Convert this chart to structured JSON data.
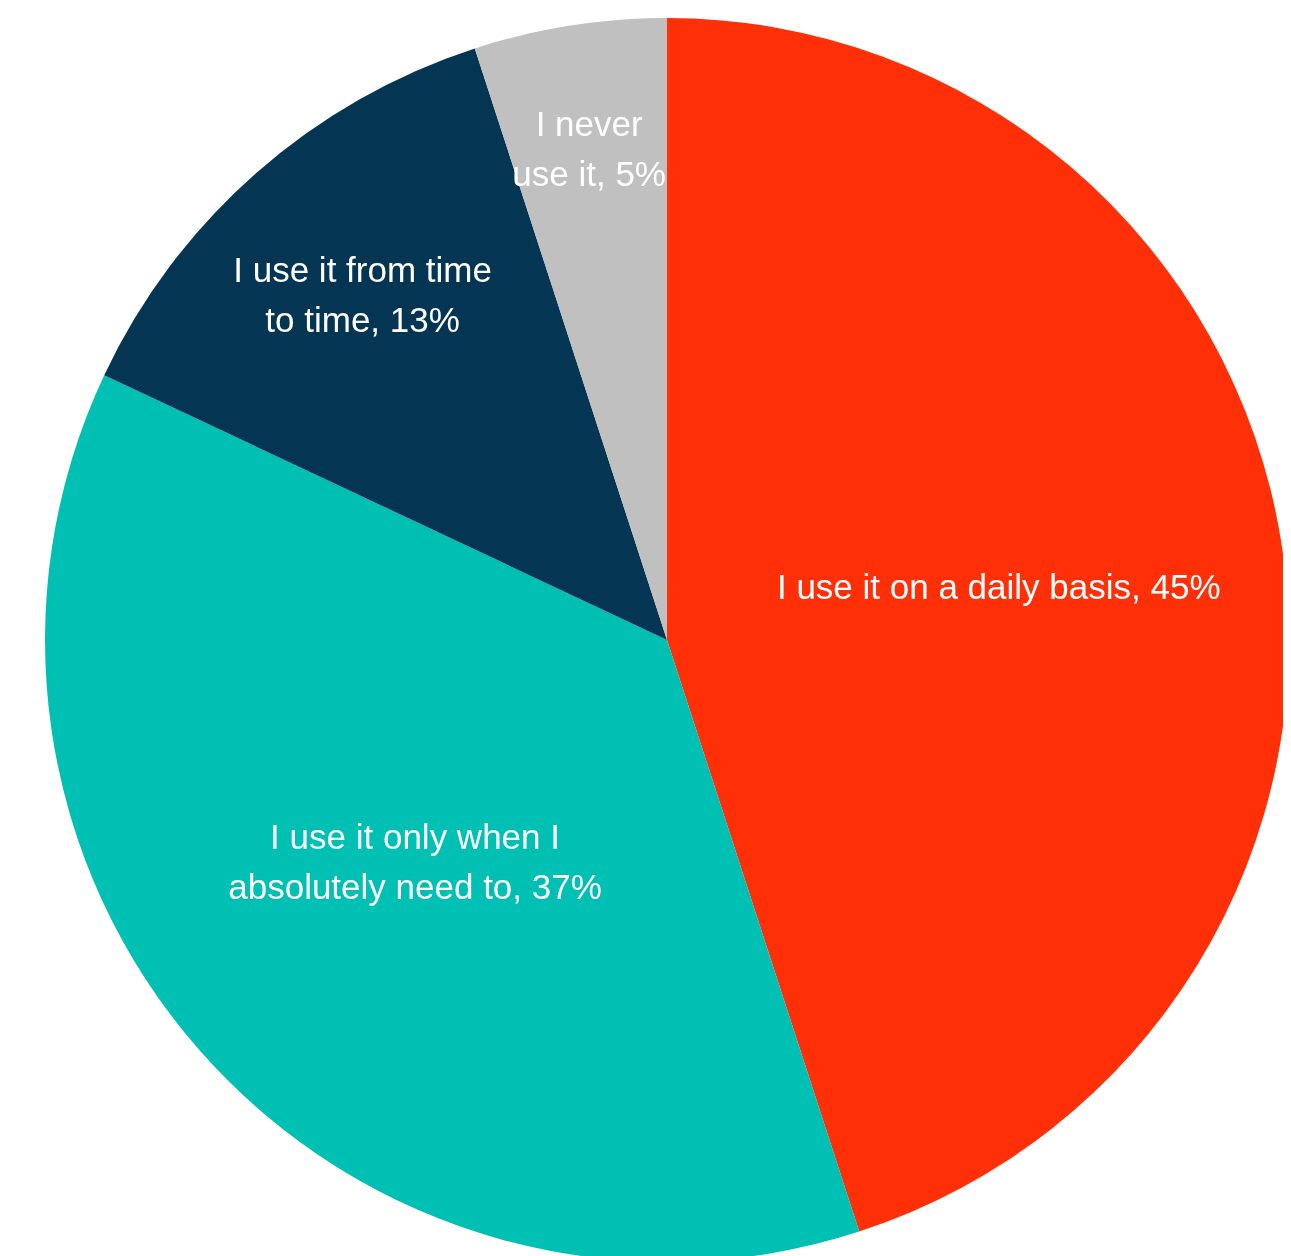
{
  "chart_data": {
    "type": "pie",
    "categories": [
      "I use it on a daily basis",
      "I use it only when I absolutely need to",
      "I use it from time to time",
      "I never use it"
    ],
    "values": [
      45,
      37,
      13,
      5
    ],
    "value_labels": [
      "45%",
      "37%",
      "13%",
      "5%"
    ],
    "colors": [
      "#ff3008",
      "#00bfb3",
      "#043553",
      "#c0c0c0"
    ]
  }
}
